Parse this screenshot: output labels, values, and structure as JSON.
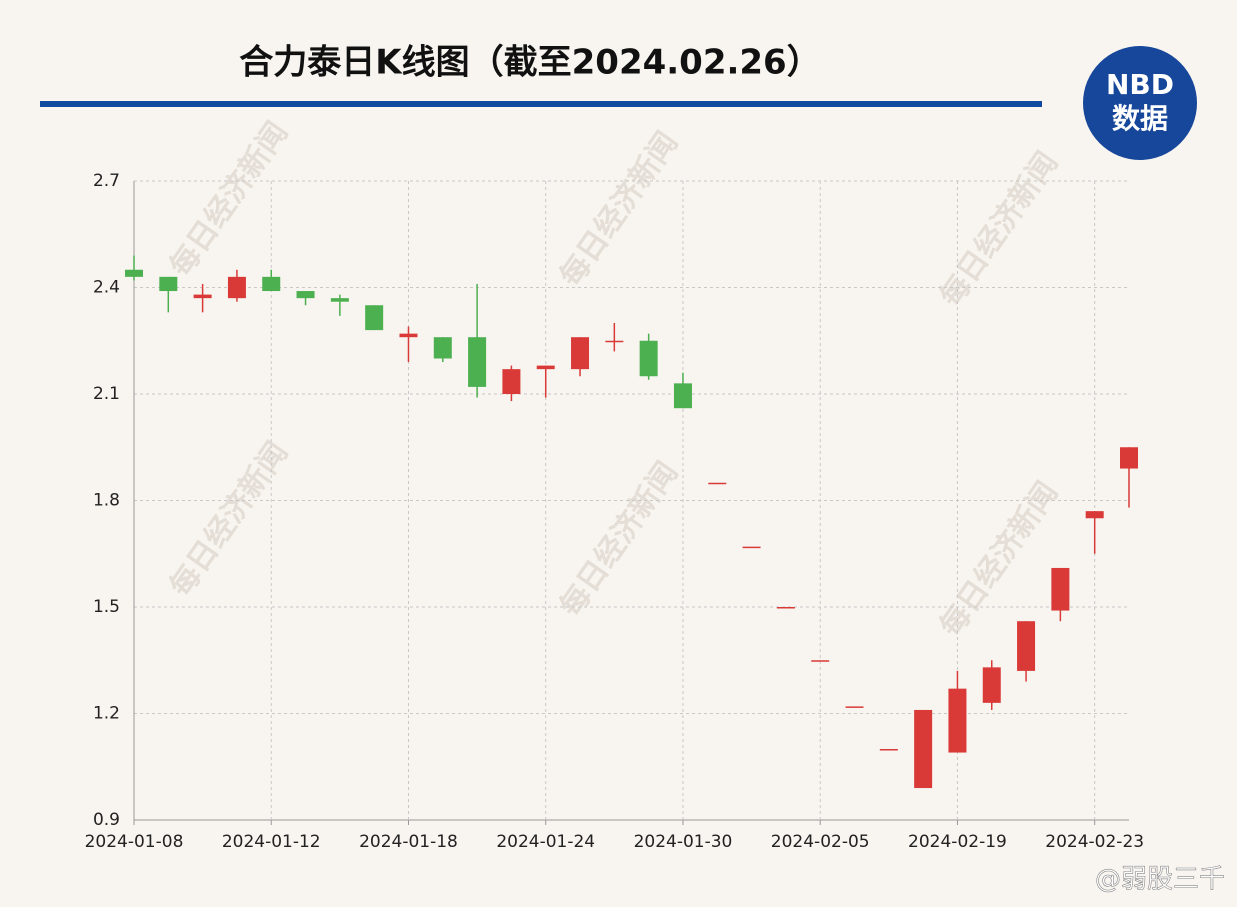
{
  "chart_data": {
    "type": "candlestick",
    "title": "合力泰日K线图（截至2024.02.26）",
    "logo_top": "NBD",
    "logo_bottom": "数据",
    "watermark": "每日经济新闻",
    "credit": "@弱股三千",
    "categories": [
      "2024-01-08",
      null,
      null,
      null,
      "2024-01-12",
      null,
      null,
      null,
      "2024-01-18",
      null,
      null,
      null,
      "2024-01-24",
      null,
      null,
      null,
      "2024-01-30",
      null,
      null,
      null,
      "2024-02-05",
      null,
      null,
      null,
      "2024-02-19",
      null,
      null,
      null,
      "2024-02-23",
      null
    ],
    "open": [
      2.45,
      2.43,
      2.37,
      2.37,
      2.43,
      2.39,
      2.37,
      2.35,
      2.26,
      2.26,
      2.26,
      2.1,
      2.17,
      2.17,
      2.25,
      2.25,
      2.13,
      1.85,
      1.67,
      1.5,
      1.35,
      1.22,
      1.1,
      0.99,
      1.09,
      1.23,
      1.32,
      1.49,
      1.75,
      1.89
    ],
    "high": [
      2.49,
      2.43,
      2.41,
      2.45,
      2.45,
      2.39,
      2.38,
      2.35,
      2.29,
      2.26,
      2.41,
      2.18,
      2.18,
      2.26,
      2.3,
      2.27,
      2.16,
      1.85,
      1.67,
      1.5,
      1.35,
      1.22,
      1.1,
      1.21,
      1.32,
      1.35,
      1.46,
      1.61,
      1.77,
      1.95
    ],
    "low": [
      2.42,
      2.33,
      2.33,
      2.36,
      2.39,
      2.35,
      2.32,
      2.28,
      2.19,
      2.19,
      2.09,
      2.08,
      2.09,
      2.15,
      2.22,
      2.14,
      2.06,
      1.85,
      1.67,
      1.5,
      1.35,
      1.22,
      1.1,
      0.99,
      1.09,
      1.21,
      1.29,
      1.46,
      1.65,
      1.78
    ],
    "close": [
      2.43,
      2.39,
      2.38,
      2.43,
      2.39,
      2.37,
      2.36,
      2.28,
      2.27,
      2.2,
      2.12,
      2.17,
      2.18,
      2.26,
      2.25,
      2.15,
      2.06,
      1.85,
      1.67,
      1.5,
      1.35,
      1.22,
      1.1,
      1.21,
      1.27,
      1.33,
      1.46,
      1.61,
      1.77,
      1.95
    ],
    "up_color": "#d93a37",
    "down_color": "#4caf50",
    "ylim": [
      0.9,
      2.7
    ],
    "yticks": [
      0.9,
      1.2,
      1.5,
      1.8,
      2.1,
      2.4,
      2.7
    ],
    "grid": true
  }
}
